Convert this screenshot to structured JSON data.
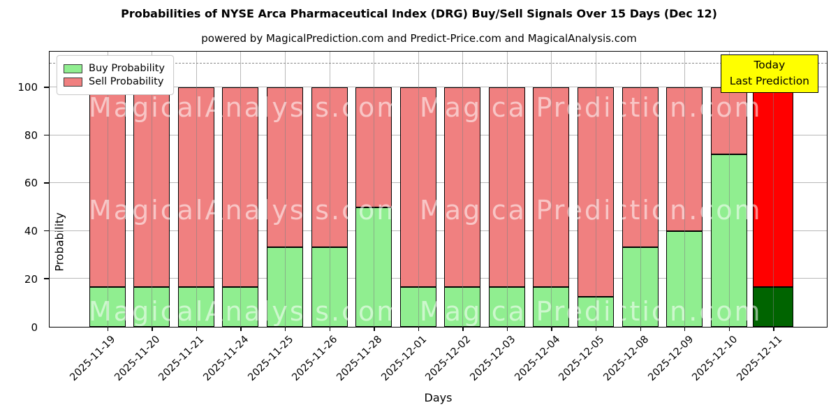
{
  "title": "Probabilities of NYSE Arca Pharmaceutical Index (DRG) Buy/Sell Signals Over 15 Days (Dec 12)",
  "subtitle": "powered by MagicalPrediction.com and Predict-Price.com and MagicalAnalysis.com",
  "axes": {
    "ylabel": "Probability",
    "xlabel": "Days"
  },
  "legend": {
    "buy_label": "Buy Probability",
    "sell_label": "Sell Probability"
  },
  "annotation_box": {
    "line1": "Today",
    "line2": "Last Prediction"
  },
  "watermarks": {
    "left_text": "MagicalAnalysis.com",
    "right_text": "MagicalPrediction.com"
  },
  "colors": {
    "buy": "#90EE90",
    "sell": "#F08080",
    "today_buy": "#006400",
    "today_sell": "#FF0000",
    "annotation_bg": "#FFFF00",
    "grid": "#b9b9b9"
  },
  "chart_data": {
    "type": "bar",
    "stacked": true,
    "title": "Probabilities of NYSE Arca Pharmaceutical Index (DRG) Buy/Sell Signals Over 15 Days (Dec 12)",
    "xlabel": "Days",
    "ylabel": "Probability",
    "categories": [
      "2025-11-19",
      "2025-11-20",
      "2025-11-21",
      "2025-11-24",
      "2025-11-25",
      "2025-11-26",
      "2025-11-28",
      "2025-12-01",
      "2025-12-02",
      "2025-12-03",
      "2025-12-04",
      "2025-12-05",
      "2025-12-08",
      "2025-12-09",
      "2025-12-10",
      "2025-12-11"
    ],
    "series": [
      {
        "name": "Buy Probability",
        "values": [
          16.67,
          16.67,
          16.67,
          16.67,
          33.33,
          33.33,
          50,
          16.67,
          16.67,
          16.67,
          16.67,
          12.5,
          33.33,
          40,
          72,
          16.67
        ]
      },
      {
        "name": "Sell Probability",
        "values": [
          83.33,
          83.33,
          83.33,
          83.33,
          66.67,
          66.67,
          50,
          83.33,
          83.33,
          83.33,
          83.33,
          87.5,
          66.67,
          60,
          28,
          83.33
        ]
      }
    ],
    "today_index": 15,
    "yticks": [
      0,
      20,
      40,
      60,
      80,
      100
    ],
    "ylim": [
      0,
      115
    ],
    "dashed_line_y": 110,
    "grid": true,
    "legend_position": "upper left"
  }
}
